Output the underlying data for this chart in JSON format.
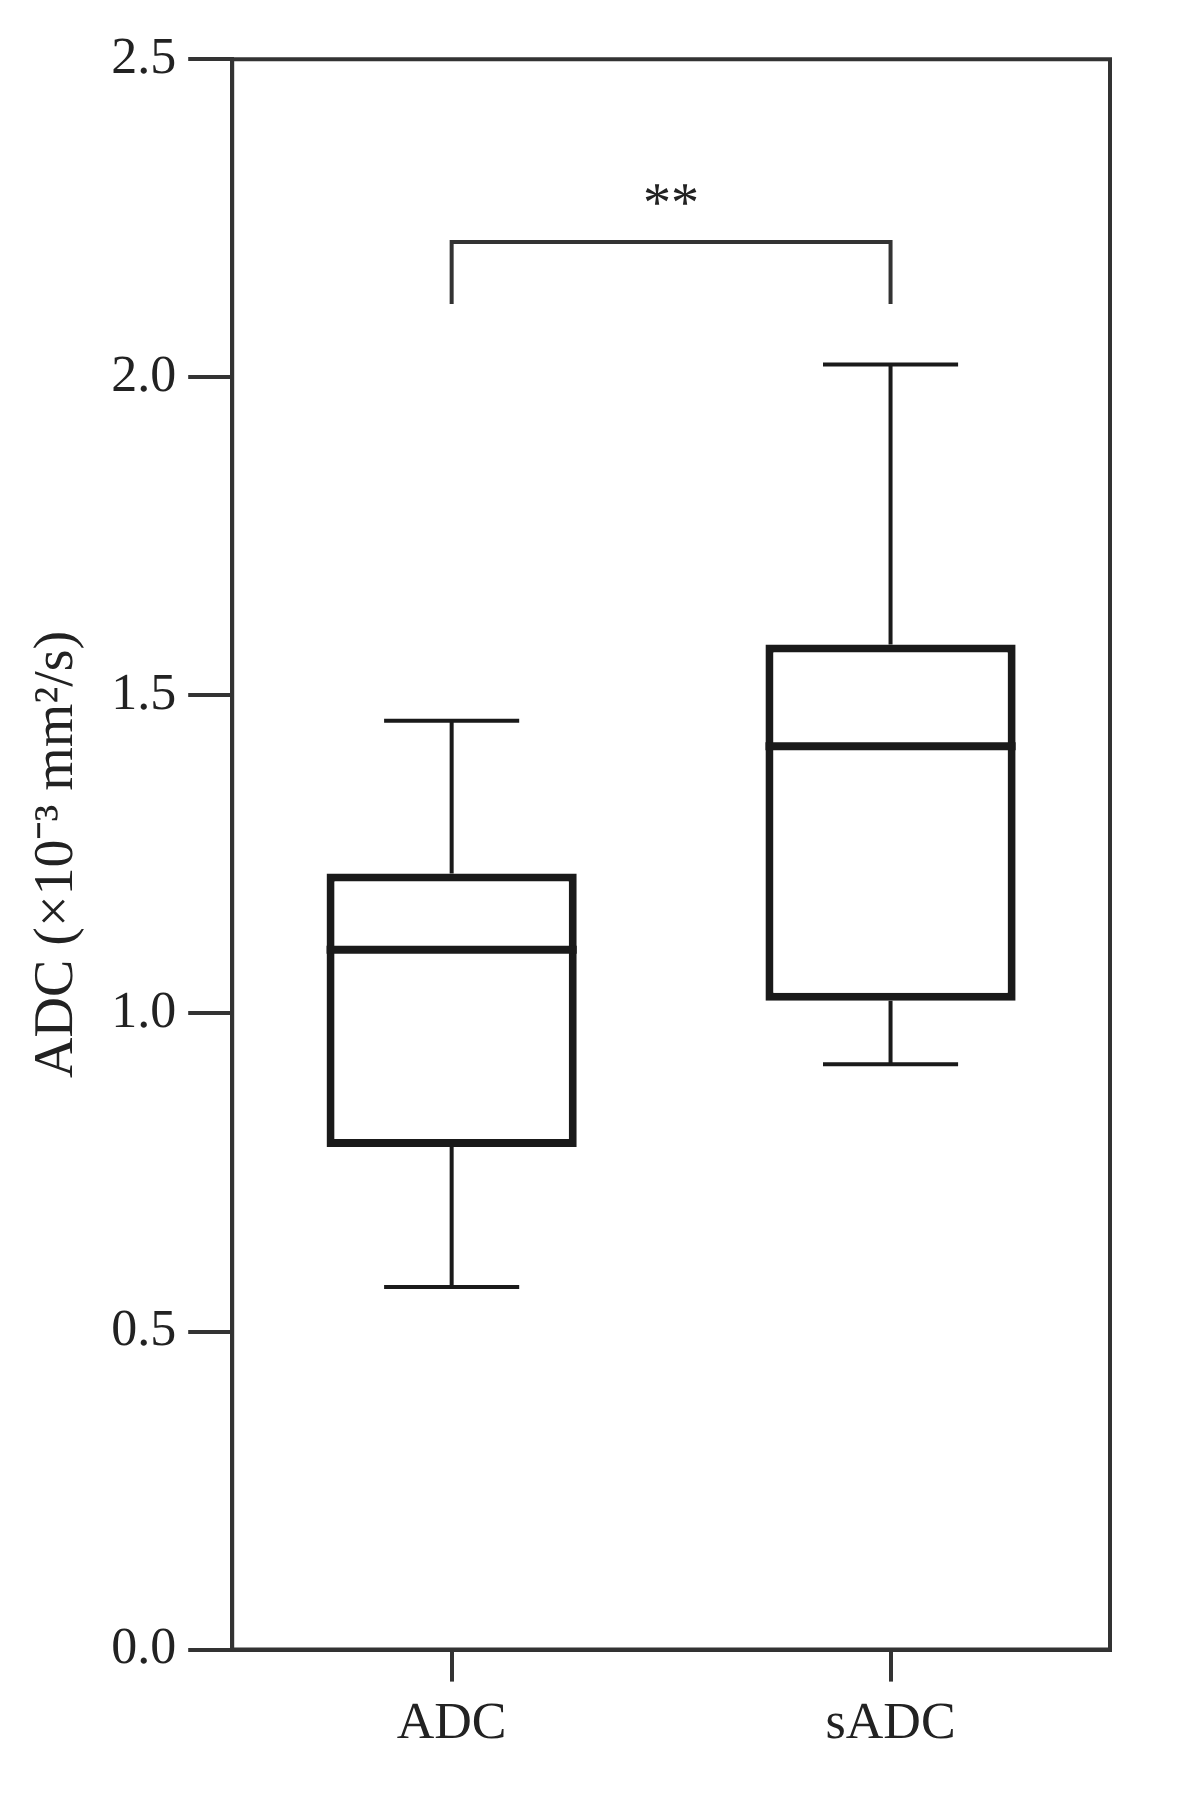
{
  "chart_data": {
    "type": "box",
    "categories": [
      "ADC",
      "sADC"
    ],
    "ylabel": "ADC (×10⁻³ mm²/s)",
    "ylim": [
      0,
      2.5
    ],
    "yticks": [
      {
        "value": 0,
        "label": "0.0"
      },
      0.5,
      {
        "value": 1,
        "label": "1.0"
      },
      1.5,
      {
        "value": 2,
        "label": "2.0"
      },
      2.5
    ],
    "series": [
      {
        "color": "#1a1a1a",
        "boxes": [
          {
            "low": 0.57,
            "q1": 0.79,
            "median": 1.1,
            "q3": 1.22,
            "high": 1.46
          },
          {
            "low": 0.92,
            "q1": 1.02,
            "median": 1.42,
            "q3": 1.58,
            "high": 2.02
          }
        ]
      }
    ],
    "annotations": [
      "**"
    ]
  }
}
